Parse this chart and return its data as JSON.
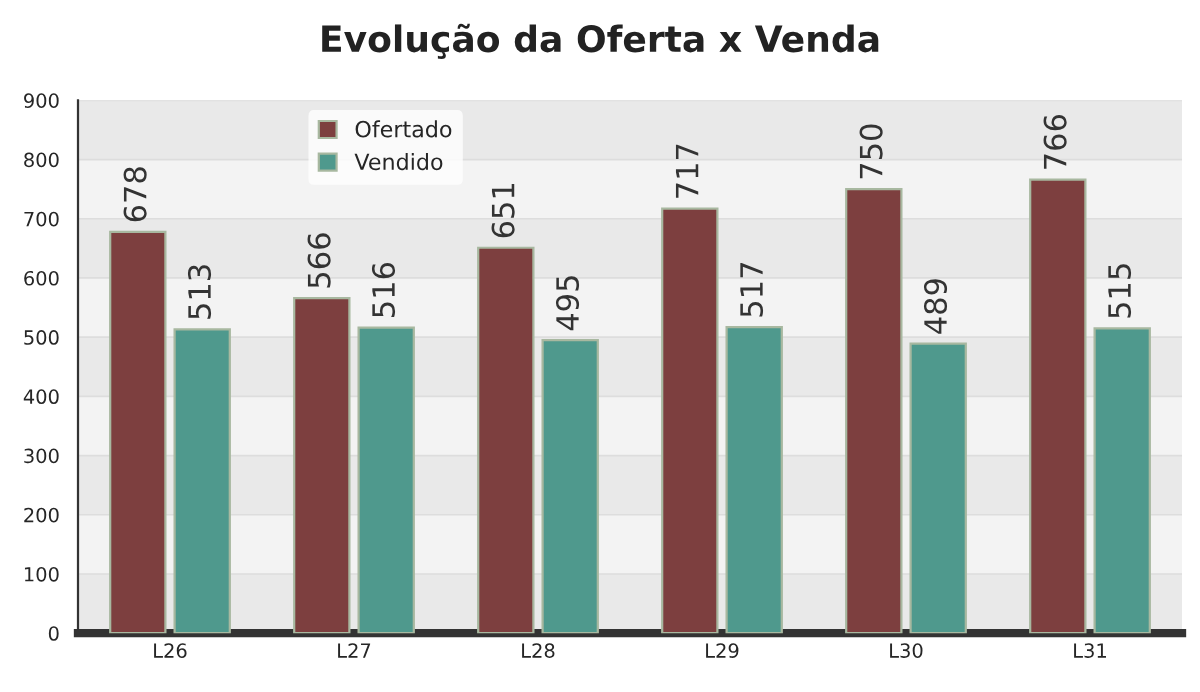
{
  "chart_data": {
    "type": "bar",
    "title": "Evolução da Oferta x Venda",
    "categories": [
      "L26",
      "L27",
      "L28",
      "L29",
      "L30",
      "L31"
    ],
    "series": [
      {
        "name": "Ofertado",
        "color": "#7d3f3f",
        "values": [
          678,
          566,
          651,
          717,
          750,
          766
        ]
      },
      {
        "name": "Vendido",
        "color": "#4f998d",
        "values": [
          513,
          516,
          495,
          517,
          489,
          515
        ]
      }
    ],
    "ylim": [
      0,
      900
    ],
    "yticks": [
      0,
      100,
      200,
      300,
      400,
      500,
      600,
      700,
      800,
      900
    ],
    "grid": "y",
    "legend": "top left",
    "data_labels": true
  }
}
